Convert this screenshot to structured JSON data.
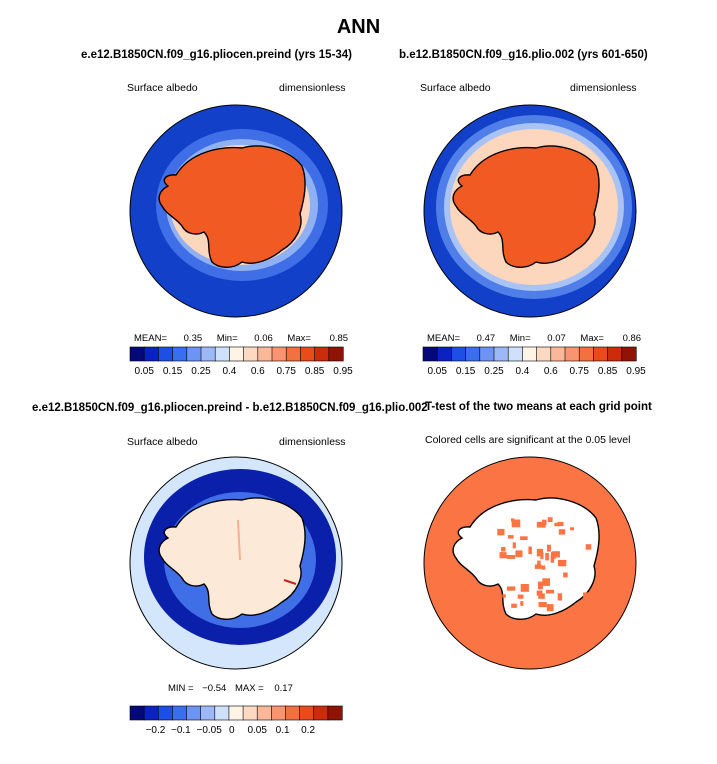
{
  "figure_title": "ANN",
  "panels": [
    {
      "title": "e.e12.B1850CN.f09_g16.pliocen.preind (yrs 15-34)",
      "variable": "Surface albedo",
      "units": "dimensionless",
      "stats": {
        "mean_label": "MEAN=",
        "mean": "0.35",
        "min_label": "Min=",
        "min": "0.06",
        "max_label": "Max=",
        "max": "0.85"
      }
    },
    {
      "title": "b.e12.B1850CN.f09_g16.plio.002 (yrs 601-650)",
      "variable": "Surface albedo",
      "units": "dimensionless",
      "stats": {
        "mean_label": "MEAN=",
        "mean": "0.47",
        "min_label": "Min=",
        "min": "0.07",
        "max_label": "Max=",
        "max": "0.86"
      }
    },
    {
      "title": "e.e12.B1850CN.f09_g16.pliocen.preind - b.e12.B1850CN.f09_g16.plio.002",
      "variable": "Surface albedo",
      "units": "dimensionless",
      "stats": {
        "min_label": "MIN =",
        "min": "−0.54",
        "max_label": "MAX =",
        "max": "0.17"
      }
    },
    {
      "title": "T-test of the two means at each grid point",
      "note": "Colored cells are significant at the 0.05 level"
    }
  ],
  "colorbars": {
    "absolute": {
      "colors": [
        "#05087a",
        "#0a22c4",
        "#1d4ee6",
        "#3a6ef0",
        "#6d94f4",
        "#9cb8f6",
        "#cfe0fb",
        "#fff3e6",
        "#fdd9c1",
        "#fbb898",
        "#f89570",
        "#f3703f",
        "#ea4a1c",
        "#cc2b0c",
        "#8f1406"
      ],
      "tick_labels": [
        "0.05",
        "0.15",
        "0.25",
        "0.4",
        "0.6",
        "0.75",
        "0.85",
        "0.95"
      ]
    },
    "difference": {
      "colors": [
        "#05087a",
        "#0a22c4",
        "#1d4ee6",
        "#3a6ef0",
        "#6d94f4",
        "#9cb8f6",
        "#cfe0fb",
        "#fff3e6",
        "#fdd9c1",
        "#fbb898",
        "#f89570",
        "#f3703f",
        "#ea4a1c",
        "#cc2b0c",
        "#8f1406"
      ],
      "tick_labels": [
        "−0.2",
        "−0.1",
        "−0.05",
        "0",
        "0.05",
        "0.1",
        "0.2"
      ]
    }
  },
  "map_colors": {
    "ocean_deep": "#1240c9",
    "ocean_mid": "#3f6ee6",
    "sea_ice": "#fcd7be",
    "ice_sheet": "#f25a24",
    "diff_ocean": "#d4e6fb",
    "diff_ring": "#0a1faa",
    "diff_land": "#fde9d8",
    "ttest_fill": "#fb7544"
  }
}
